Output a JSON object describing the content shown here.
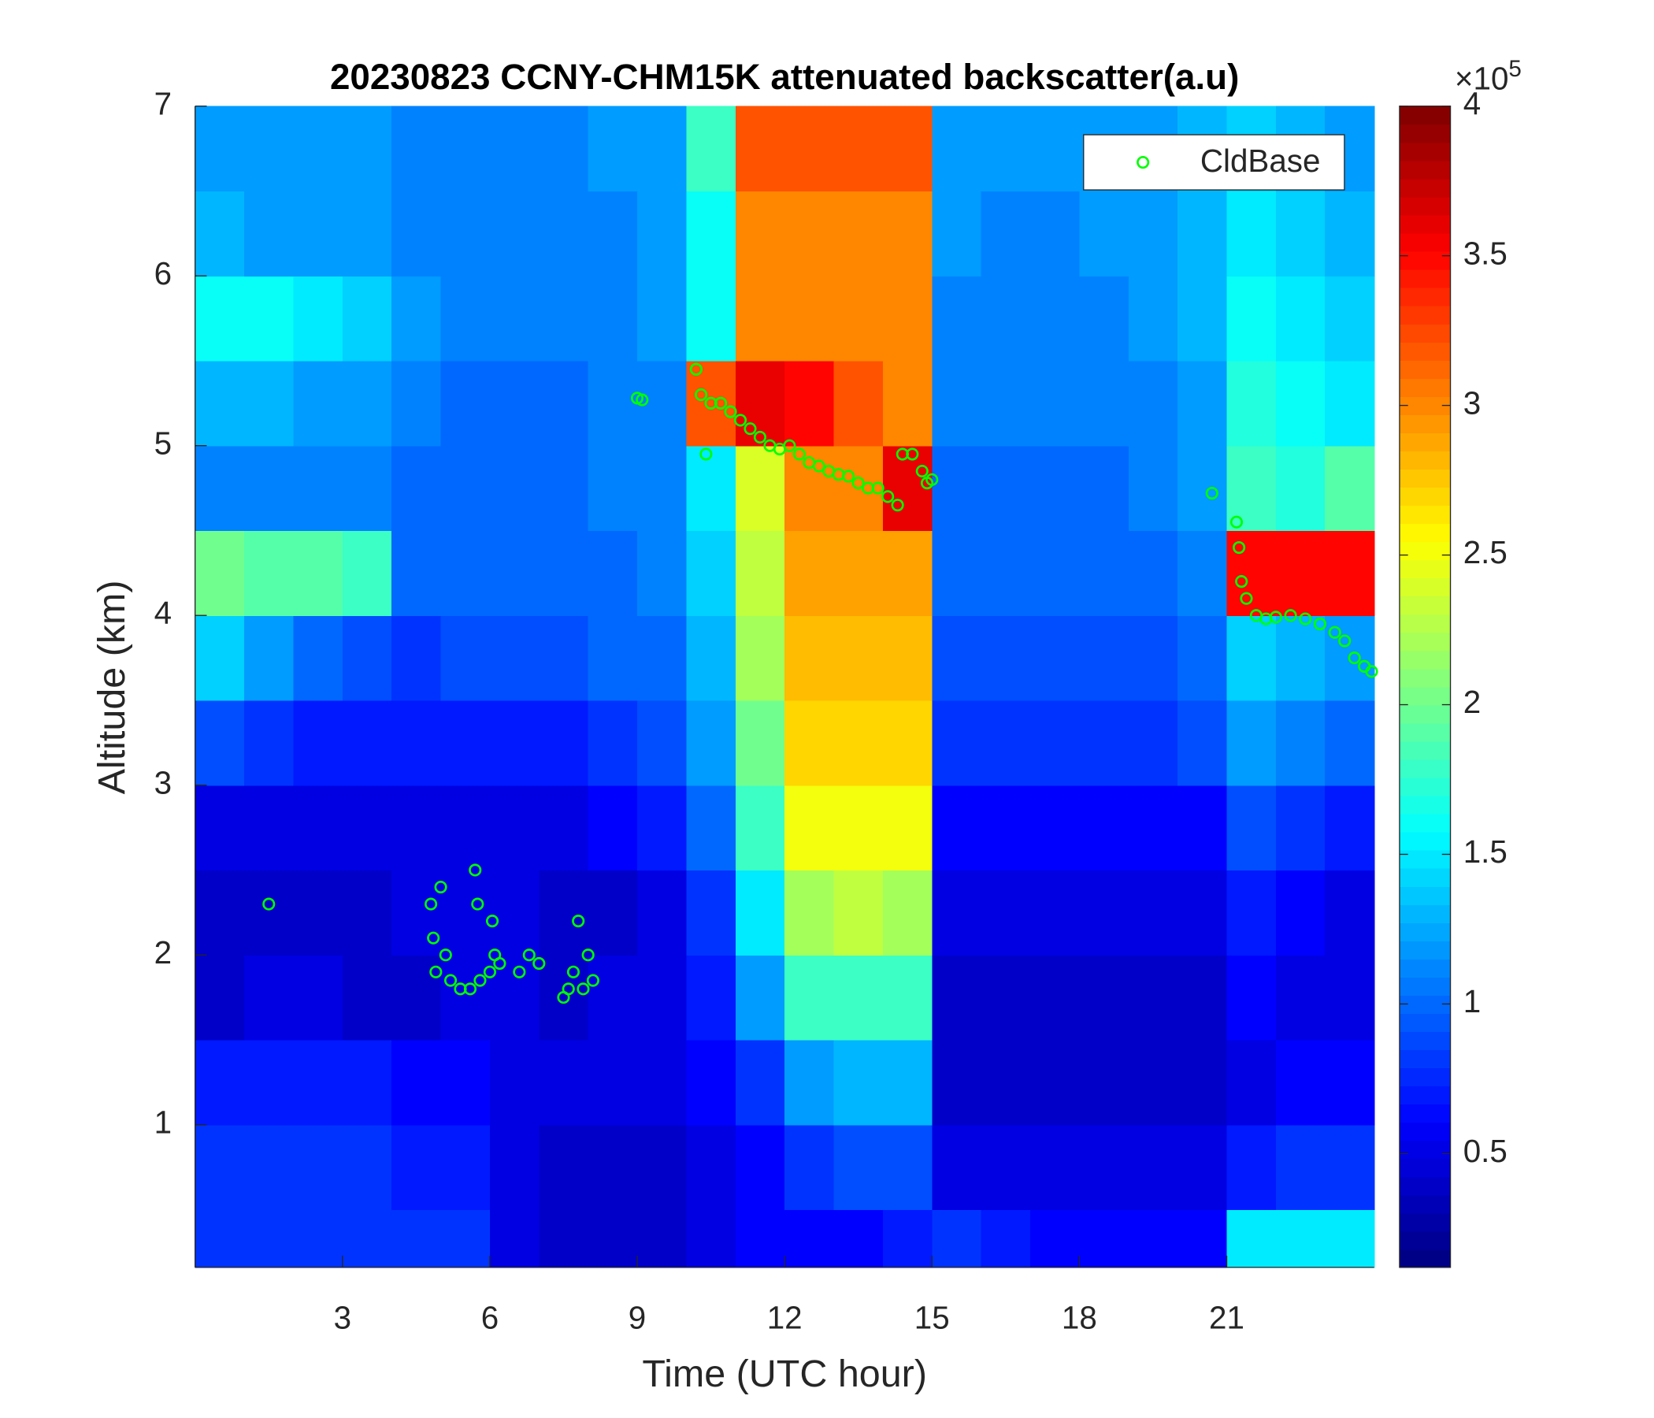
{
  "chart_data": {
    "type": "heatmap",
    "title": "20230823 CCNY-CHM15K attenuated backscatter(a.u)",
    "x_label": "Time (UTC hour)",
    "y_label": "Altitude (km)",
    "xlim": [
      0,
      24
    ],
    "ylim": [
      0.16,
      7
    ],
    "xticks": [
      3,
      6,
      9,
      12,
      15,
      18,
      21
    ],
    "yticks": [
      1,
      2,
      3,
      4,
      5,
      6,
      7
    ],
    "xbins": [
      0,
      1,
      2,
      3,
      4,
      5,
      6,
      7,
      8,
      9,
      10,
      11,
      12,
      13,
      14,
      15,
      16,
      17,
      18,
      19,
      20,
      21,
      22,
      23,
      24
    ],
    "ybins": [
      0.16,
      0.5,
      1,
      1.5,
      2,
      2.5,
      3,
      3.5,
      4,
      4.5,
      5,
      5.5,
      6,
      6.5,
      7
    ],
    "z": [
      [
        0.8,
        0.8,
        0.8,
        0.8,
        0.8,
        0.8,
        0.5,
        0.4,
        0.4,
        0.4,
        0.5,
        0.6,
        0.6,
        0.6,
        0.7,
        0.8,
        0.7,
        0.6,
        0.6,
        0.6,
        0.6,
        1.5,
        1.5,
        1.5
      ],
      [
        0.8,
        0.8,
        0.8,
        0.8,
        0.7,
        0.7,
        0.5,
        0.4,
        0.4,
        0.4,
        0.5,
        0.6,
        0.8,
        0.9,
        0.9,
        0.5,
        0.5,
        0.5,
        0.5,
        0.5,
        0.5,
        0.7,
        0.8,
        0.8
      ],
      [
        0.7,
        0.7,
        0.7,
        0.7,
        0.6,
        0.6,
        0.5,
        0.5,
        0.5,
        0.5,
        0.6,
        0.8,
        1.2,
        1.3,
        1.3,
        0.4,
        0.4,
        0.4,
        0.4,
        0.4,
        0.4,
        0.5,
        0.6,
        0.6
      ],
      [
        0.4,
        0.5,
        0.5,
        0.4,
        0.4,
        0.5,
        0.5,
        0.4,
        0.5,
        0.5,
        0.7,
        1.2,
        1.8,
        1.8,
        1.8,
        0.4,
        0.4,
        0.4,
        0.4,
        0.4,
        0.4,
        0.6,
        0.5,
        0.5
      ],
      [
        0.4,
        0.4,
        0.4,
        0.4,
        0.5,
        0.5,
        0.5,
        0.4,
        0.4,
        0.5,
        0.8,
        1.5,
        2.2,
        2.3,
        2.2,
        0.5,
        0.5,
        0.5,
        0.5,
        0.5,
        0.5,
        0.7,
        0.6,
        0.5
      ],
      [
        0.5,
        0.5,
        0.5,
        0.5,
        0.5,
        0.5,
        0.5,
        0.5,
        0.6,
        0.7,
        1.0,
        1.8,
        2.5,
        2.5,
        2.5,
        0.6,
        0.6,
        0.6,
        0.6,
        0.6,
        0.6,
        0.9,
        0.8,
        0.7
      ],
      [
        0.9,
        0.8,
        0.7,
        0.7,
        0.7,
        0.7,
        0.7,
        0.7,
        0.8,
        0.9,
        1.2,
        2.0,
        2.7,
        2.7,
        2.7,
        0.8,
        0.8,
        0.8,
        0.8,
        0.8,
        0.9,
        1.2,
        1.1,
        1.0
      ],
      [
        1.4,
        1.2,
        1.0,
        0.9,
        0.8,
        0.9,
        0.9,
        0.9,
        1.0,
        1.0,
        1.3,
        2.2,
        2.8,
        2.8,
        2.8,
        0.9,
        0.9,
        0.9,
        0.9,
        0.9,
        1.0,
        1.4,
        1.3,
        1.2
      ],
      [
        2.0,
        1.9,
        1.9,
        1.8,
        1.0,
        1.0,
        1.0,
        1.0,
        1.0,
        1.1,
        1.4,
        2.3,
        2.9,
        2.9,
        2.9,
        1.0,
        1.0,
        1.0,
        1.0,
        1.0,
        1.1,
        3.5,
        3.5,
        3.5
      ],
      [
        1.1,
        1.1,
        1.1,
        1.1,
        1.0,
        1.0,
        1.0,
        1.0,
        1.1,
        1.1,
        1.5,
        2.4,
        3.0,
        3.0,
        3.6,
        1.0,
        1.0,
        1.0,
        1.0,
        1.1,
        1.2,
        1.8,
        1.7,
        1.9
      ],
      [
        1.3,
        1.3,
        1.2,
        1.2,
        1.1,
        1.0,
        1.0,
        1.0,
        1.1,
        1.1,
        3.2,
        3.6,
        3.5,
        3.2,
        3.0,
        1.1,
        1.1,
        1.1,
        1.1,
        1.1,
        1.2,
        1.7,
        1.6,
        1.5
      ],
      [
        1.6,
        1.6,
        1.5,
        1.4,
        1.2,
        1.1,
        1.1,
        1.1,
        1.1,
        1.2,
        1.6,
        3.0,
        3.0,
        3.0,
        3.0,
        1.1,
        1.1,
        1.1,
        1.1,
        1.2,
        1.3,
        1.6,
        1.5,
        1.4
      ],
      [
        1.3,
        1.2,
        1.2,
        1.2,
        1.1,
        1.1,
        1.1,
        1.1,
        1.1,
        1.2,
        1.6,
        3.0,
        3.0,
        3.0,
        3.0,
        1.2,
        1.1,
        1.1,
        1.2,
        1.2,
        1.3,
        1.5,
        1.4,
        1.3
      ],
      [
        1.2,
        1.2,
        1.2,
        1.2,
        1.1,
        1.1,
        1.1,
        1.1,
        1.2,
        1.2,
        1.8,
        3.2,
        3.2,
        3.2,
        3.2,
        1.2,
        1.2,
        1.2,
        1.2,
        1.2,
        1.3,
        1.4,
        1.3,
        1.2
      ]
    ],
    "colormap": "jet",
    "clim": [
      0.12,
      4
    ],
    "cticks": [
      0.5,
      1,
      1.5,
      2,
      2.5,
      3,
      3.5,
      4
    ],
    "colorbar_multiplier": {
      "base": "×10",
      "exponent": "5"
    },
    "legend": "northeast",
    "overlay": {
      "type": "scatter",
      "name": "CldBase",
      "color": "#00ff00",
      "x": [
        1.5,
        4.8,
        4.85,
        4.9,
        5.0,
        5.1,
        5.2,
        5.4,
        5.6,
        5.7,
        5.75,
        5.8,
        6.0,
        6.05,
        6.1,
        6.2,
        6.6,
        6.8,
        7.0,
        7.5,
        7.6,
        7.7,
        7.8,
        7.9,
        8.0,
        8.1,
        9.0,
        9.1,
        10.2,
        10.3,
        10.4,
        10.5,
        10.7,
        10.9,
        11.1,
        11.3,
        11.5,
        11.7,
        11.9,
        12.1,
        12.3,
        12.5,
        12.7,
        12.9,
        13.1,
        13.3,
        13.5,
        13.7,
        13.9,
        14.1,
        14.3,
        14.4,
        14.6,
        14.8,
        14.9,
        15.0,
        20.7,
        21.2,
        21.25,
        21.3,
        21.4,
        21.6,
        21.8,
        22.0,
        22.3,
        22.6,
        22.9,
        23.2,
        23.4,
        23.6,
        23.8,
        23.95
      ],
      "y": [
        2.3,
        2.3,
        2.1,
        1.9,
        2.4,
        2.0,
        1.85,
        1.8,
        1.8,
        2.5,
        2.3,
        1.85,
        1.9,
        2.2,
        2.0,
        1.95,
        1.9,
        2.0,
        1.95,
        1.75,
        1.8,
        1.9,
        2.2,
        1.8,
        2.0,
        1.85,
        5.28,
        5.27,
        5.45,
        5.3,
        4.95,
        5.25,
        5.25,
        5.2,
        5.15,
        5.1,
        5.05,
        5.0,
        4.98,
        5.0,
        4.95,
        4.9,
        4.88,
        4.85,
        4.83,
        4.82,
        4.78,
        4.75,
        4.75,
        4.7,
        4.65,
        4.95,
        4.95,
        4.85,
        4.78,
        4.8,
        4.72,
        4.55,
        4.4,
        4.2,
        4.1,
        4.0,
        3.98,
        3.99,
        4.0,
        3.98,
        3.95,
        3.9,
        3.85,
        3.75,
        3.7,
        3.67
      ]
    }
  }
}
